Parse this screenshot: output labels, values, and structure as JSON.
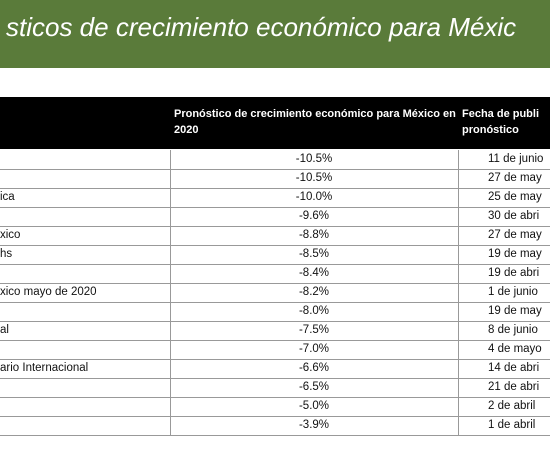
{
  "header": {
    "title": "sticos de crecimiento económico para Méxic"
  },
  "table": {
    "columns": [
      "Pronóstico de crecimiento económico para México en 2020",
      [
        "Fecha de publi",
        "pronóstico"
      ]
    ],
    "rows": [
      {
        "value": "-10.5%",
        "date": "11 de junio"
      },
      {
        "value": "-10.5%",
        "date": "27 de may"
      },
      {
        "label": "ica",
        "value": "-10.0%",
        "date": "25 de may"
      },
      {
        "value": "-9.6%",
        "date": "30 de abri"
      },
      {
        "label": "xico",
        "value": "-8.8%",
        "date": "27 de may"
      },
      {
        "label": "hs",
        "value": "-8.5%",
        "date": "19 de may"
      },
      {
        "value": "-8.4%",
        "date": "19 de abri"
      },
      {
        "label": "xico mayo de 2020",
        "value": "-8.2%",
        "date": "1 de junio"
      },
      {
        "value": "-8.0%",
        "date": "19 de may"
      },
      {
        "label": "al",
        "value": "-7.5%",
        "date": "8 de junio"
      },
      {
        "value": "-7.0%",
        "date": "4 de mayo"
      },
      {
        "label": "ario Internacional",
        "value": "-6.6%",
        "date": "14 de abri"
      },
      {
        "value": "-6.5%",
        "date": "21 de abri"
      },
      {
        "value": "-5.0%",
        "date": "2 de abril"
      },
      {
        "value": "-3.9%",
        "date": "1 de abril"
      }
    ]
  }
}
